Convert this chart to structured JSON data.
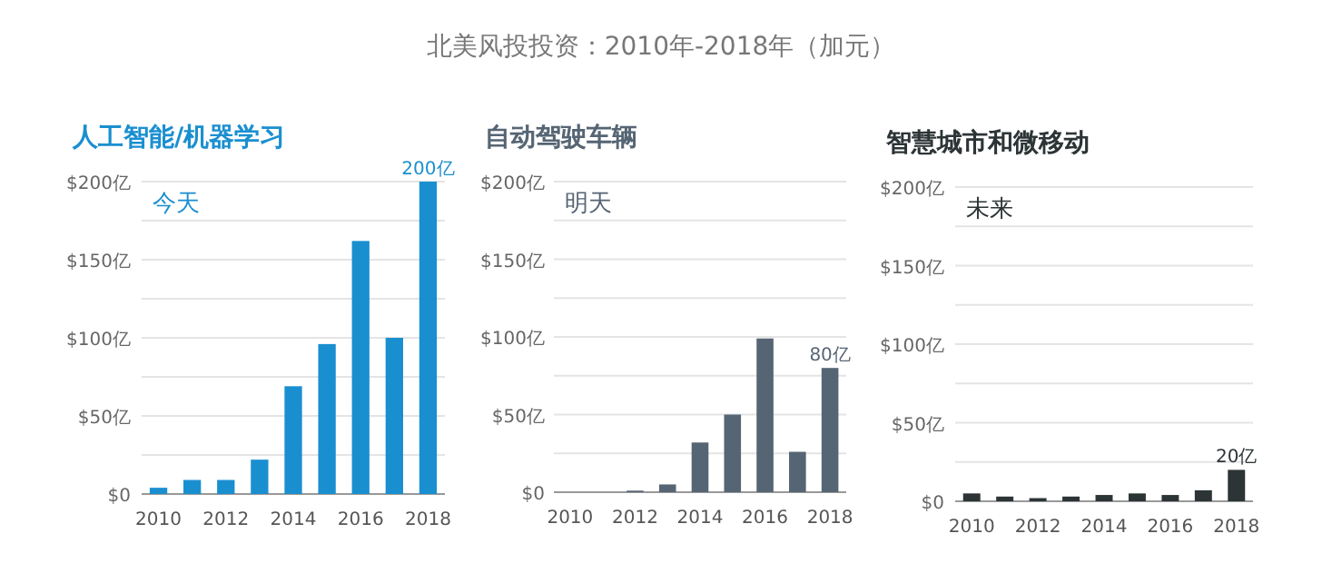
{
  "chart_data": [
    {
      "type": "other",
      "title": "北美风投投资：2010年-2018年（加元）"
    },
    {
      "type": "bar",
      "title": "人工智能/机器学习",
      "annotations": [
        "今天"
      ],
      "categories": [
        "2010",
        null,
        "2012",
        null,
        "2014",
        null,
        "2016",
        null,
        "2018"
      ],
      "values": [
        4,
        9,
        9,
        22,
        69,
        96,
        162,
        100,
        200
      ],
      "value_labels": [
        null,
        null,
        null,
        null,
        null,
        null,
        null,
        null,
        "200亿"
      ],
      "color": "#1a8fd0",
      "ylim": [
        0,
        200
      ],
      "yticks": [
        {
          "value": 0,
          "label": "$0"
        },
        {
          "value": 25,
          "label": null
        },
        {
          "value": 50,
          "label": "$50亿"
        },
        {
          "value": 75,
          "label": null
        },
        {
          "value": 100,
          "label": "$100亿"
        },
        {
          "value": 125,
          "label": null
        },
        {
          "value": 150,
          "label": "$150亿"
        },
        {
          "value": 175,
          "label": null
        },
        {
          "value": 200,
          "label": "$200亿"
        }
      ],
      "grid": "y"
    },
    {
      "type": "bar",
      "title": "自动驾驶车辆",
      "annotations": [
        "明天"
      ],
      "categories": [
        "2010",
        null,
        "2012",
        null,
        "2014",
        null,
        "2016",
        null,
        "2018"
      ],
      "values": [
        0,
        0,
        1,
        5,
        32,
        50,
        99,
        26,
        80
      ],
      "value_labels": [
        null,
        null,
        null,
        null,
        null,
        null,
        null,
        null,
        "80亿"
      ],
      "color": "#566574",
      "ylim": [
        0,
        200
      ],
      "yticks": [
        {
          "value": 0,
          "label": "$0"
        },
        {
          "value": 25,
          "label": null
        },
        {
          "value": 50,
          "label": "$50亿"
        },
        {
          "value": 75,
          "label": null
        },
        {
          "value": 100,
          "label": "$100亿"
        },
        {
          "value": 125,
          "label": null
        },
        {
          "value": 150,
          "label": "$150亿"
        },
        {
          "value": 175,
          "label": null
        },
        {
          "value": 200,
          "label": "$200亿"
        }
      ],
      "grid": "y"
    },
    {
      "type": "bar",
      "title": "智慧城市和微移动",
      "annotations": [
        "未来"
      ],
      "categories": [
        "2010",
        null,
        "2012",
        null,
        "2014",
        null,
        "2016",
        null,
        "2018"
      ],
      "values": [
        5,
        3,
        2,
        3,
        4,
        5,
        4,
        7,
        20
      ],
      "value_labels": [
        null,
        null,
        null,
        null,
        null,
        null,
        null,
        null,
        "20亿"
      ],
      "color": "#2c3436",
      "ylim": [
        0,
        200
      ],
      "yticks": [
        {
          "value": 0,
          "label": "$0"
        },
        {
          "value": 25,
          "label": null
        },
        {
          "value": 50,
          "label": "$50亿"
        },
        {
          "value": 75,
          "label": null
        },
        {
          "value": 100,
          "label": "$100亿"
        },
        {
          "value": 125,
          "label": null
        },
        {
          "value": 150,
          "label": "$150亿"
        },
        {
          "value": 175,
          "label": null
        },
        {
          "value": 200,
          "label": "$200亿"
        }
      ],
      "grid": "y"
    }
  ]
}
